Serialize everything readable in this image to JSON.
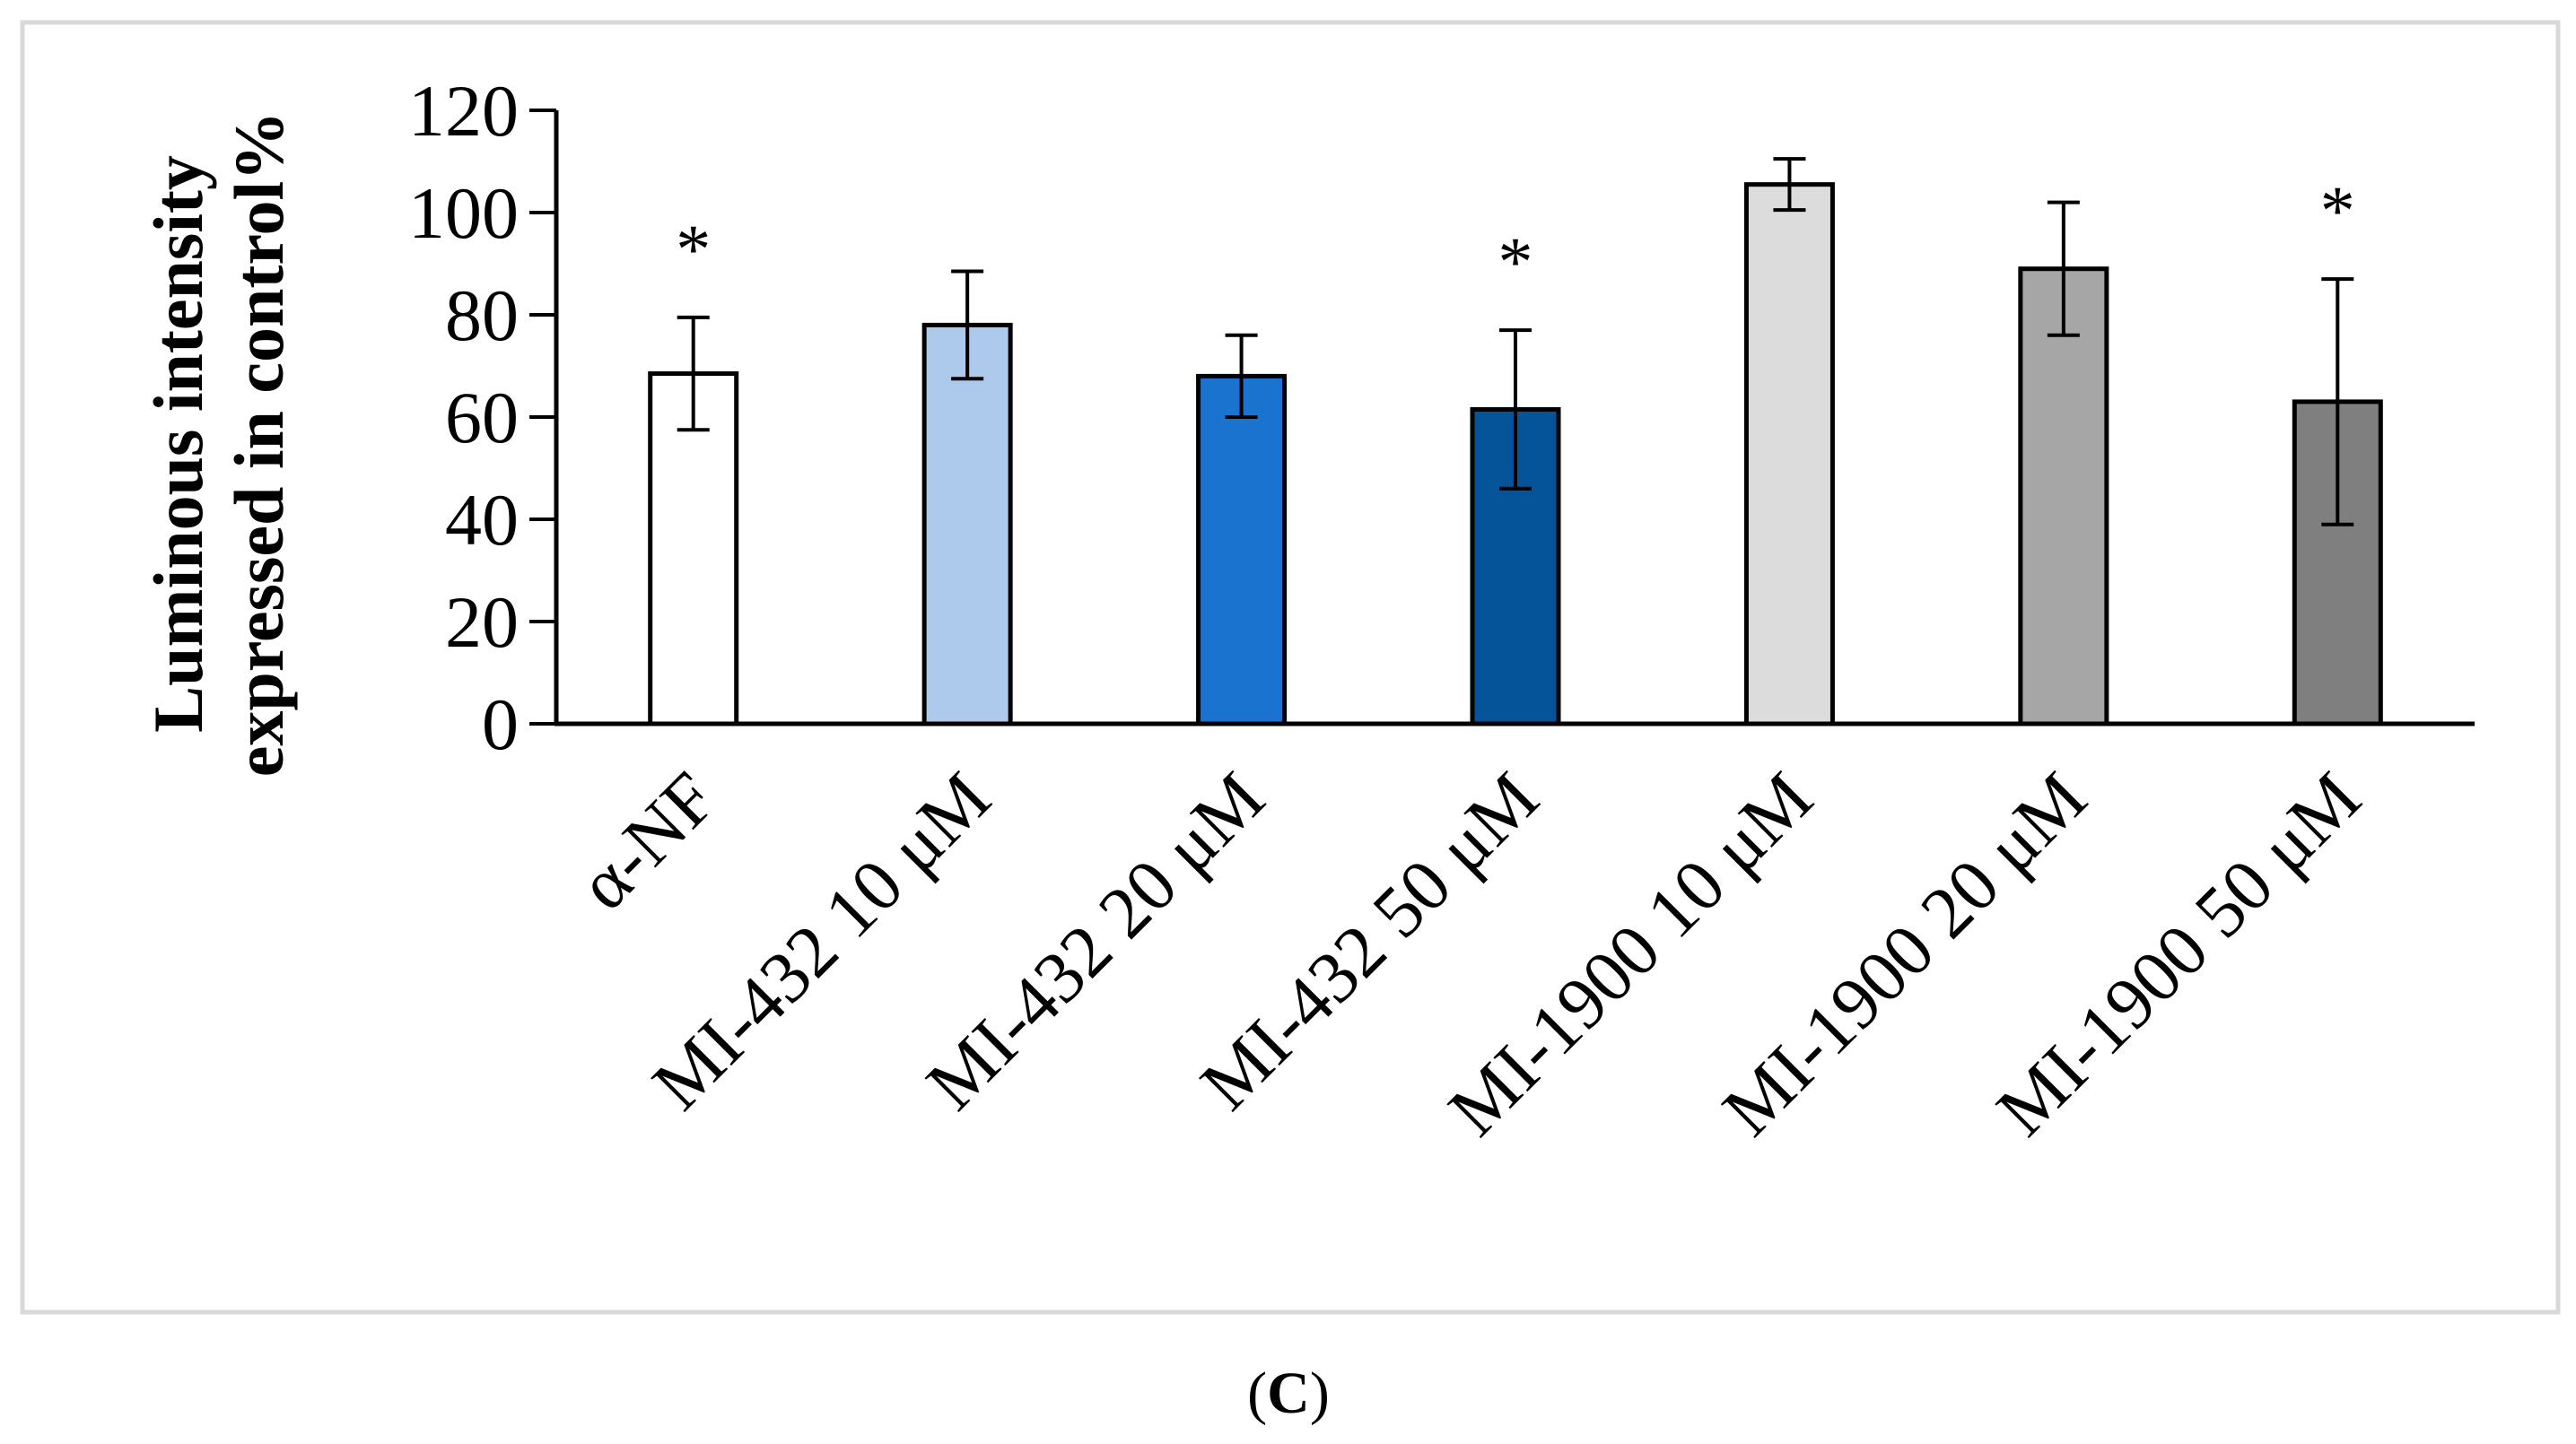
{
  "chart_data": {
    "type": "bar",
    "title": "",
    "xlabel": "",
    "ylabel_lines": [
      "Luminous intensity",
      "expressed in control%"
    ],
    "ylim": [
      0,
      120
    ],
    "yticks": [
      0,
      20,
      40,
      60,
      80,
      100,
      120
    ],
    "categories": [
      "α-NF",
      "MI-432 10 μM",
      "MI-432 20 μM",
      "MI-432 50 μM",
      "MI-1900 10 μM",
      "MI-1900 20 μM",
      "MI-1900 50 μM"
    ],
    "values": [
      68.5,
      78,
      68,
      61.5,
      105.5,
      89,
      63
    ],
    "errors": [
      11,
      10.5,
      8,
      15.5,
      5,
      13,
      24
    ],
    "colors": [
      "#ffffff",
      "#adc9eb",
      "#1a74cf",
      "#055399",
      "#dcdcdc",
      "#a6a6a6",
      "#7f7f7f"
    ],
    "significance": [
      "*",
      "",
      "",
      "*",
      "",
      "",
      "*"
    ],
    "grid": false,
    "legend": "none"
  },
  "caption": {
    "open": "(",
    "letter": "C",
    "close": ")"
  }
}
